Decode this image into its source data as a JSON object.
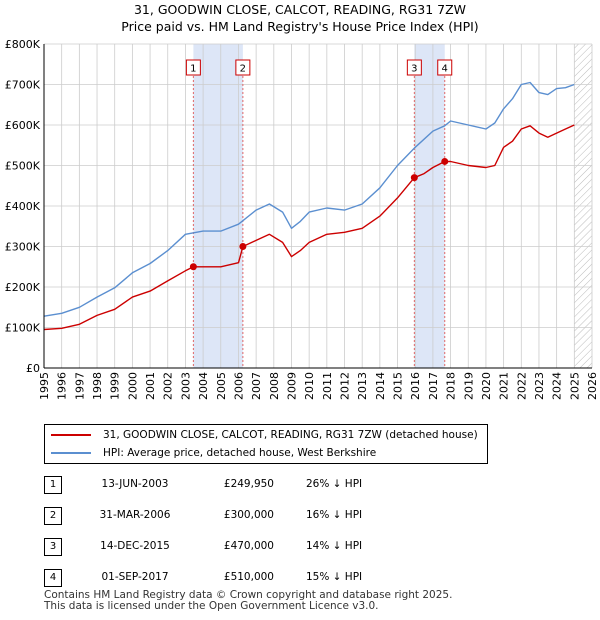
{
  "title_line1": "31, GOODWIN CLOSE, CALCOT, READING, RG31 7ZW",
  "title_line2": "Price paid vs. HM Land Registry's House Price Index (HPI)",
  "colors": {
    "property": "#cc0000",
    "hpi": "#5b8fd0",
    "shade": "#dde6f7",
    "grid": "#cccccc"
  },
  "legend": {
    "property": "31, GOODWIN CLOSE, CALCOT, READING, RG31 7ZW (detached house)",
    "hpi": "HPI: Average price, detached house, West Berkshire"
  },
  "sales": [
    {
      "num": "1",
      "date": "13-JUN-2003",
      "price": "£249,950",
      "delta": "26% ↓ HPI"
    },
    {
      "num": "2",
      "date": "31-MAR-2006",
      "price": "£300,000",
      "delta": "16% ↓ HPI"
    },
    {
      "num": "3",
      "date": "14-DEC-2015",
      "price": "£470,000",
      "delta": "14% ↓ HPI"
    },
    {
      "num": "4",
      "date": "01-SEP-2017",
      "price": "£510,000",
      "delta": "15% ↓ HPI"
    }
  ],
  "footer_line1": "Contains HM Land Registry data © Crown copyright and database right 2025.",
  "footer_line2": "This data is licensed under the Open Government Licence v3.0.",
  "chart_data": {
    "type": "line",
    "title": "31, GOODWIN CLOSE, CALCOT, READING, RG31 7ZW",
    "subtitle": "Price paid vs. HM Land Registry's House Price Index (HPI)",
    "xlabel": "",
    "ylabel": "",
    "xlim": [
      1995,
      2026
    ],
    "ylim": [
      0,
      800000
    ],
    "y_ticks": [
      0,
      100000,
      200000,
      300000,
      400000,
      500000,
      600000,
      700000,
      800000
    ],
    "y_tick_labels": [
      "£0",
      "£100K",
      "£200K",
      "£300K",
      "£400K",
      "£500K",
      "£600K",
      "£700K",
      "£800K"
    ],
    "x_ticks": [
      1995,
      1996,
      1997,
      1998,
      1999,
      2000,
      2001,
      2002,
      2003,
      2004,
      2005,
      2006,
      2007,
      2008,
      2009,
      2010,
      2011,
      2012,
      2013,
      2014,
      2015,
      2016,
      2017,
      2018,
      2019,
      2020,
      2021,
      2022,
      2023,
      2024,
      2025,
      2026
    ],
    "x_tick_labels": [
      "1995",
      "1996",
      "1997",
      "1998",
      "1999",
      "2000",
      "2001",
      "2002",
      "2003",
      "2004",
      "2005",
      "2006",
      "2007",
      "2008",
      "2009",
      "2010",
      "2011",
      "2012",
      "2013",
      "2014",
      "2015",
      "2016",
      "2017",
      "2018",
      "2019",
      "2020",
      "2021",
      "2022",
      "2023",
      "2024",
      "2025",
      "2026"
    ],
    "grid": true,
    "shaded_ranges": [
      [
        2003.45,
        2006.25
      ],
      [
        2015.95,
        2017.67
      ]
    ],
    "projection_start": 2025.0,
    "markers": [
      {
        "label": "1",
        "x": 2003.45
      },
      {
        "label": "2",
        "x": 2006.25
      },
      {
        "label": "3",
        "x": 2015.95
      },
      {
        "label": "4",
        "x": 2017.67
      }
    ],
    "sale_points": [
      {
        "x": 2003.45,
        "y": 249950
      },
      {
        "x": 2006.25,
        "y": 300000
      },
      {
        "x": 2015.95,
        "y": 470000
      },
      {
        "x": 2017.67,
        "y": 510000
      }
    ],
    "series": [
      {
        "name": "31, GOODWIN CLOSE, CALCOT, READING, RG31 7ZW (detached house)",
        "color": "#cc0000",
        "x": [
          1995,
          1996,
          1997,
          1998,
          1999,
          2000,
          2001,
          2002,
          2003,
          2003.45,
          2004,
          2005,
          2006,
          2006.25,
          2007,
          2007.75,
          2008.5,
          2009,
          2009.5,
          2010,
          2011,
          2012,
          2013,
          2014,
          2015,
          2015.95,
          2016.5,
          2017,
          2017.67,
          2018,
          2019,
          2020,
          2020.5,
          2021,
          2021.5,
          2022,
          2022.5,
          2023,
          2023.5,
          2024,
          2024.5,
          2025
        ],
        "y": [
          95000,
          98000,
          108000,
          130000,
          145000,
          175000,
          190000,
          215000,
          240000,
          249950,
          250000,
          250000,
          260000,
          300000,
          315000,
          330000,
          310000,
          275000,
          290000,
          310000,
          330000,
          335000,
          345000,
          375000,
          420000,
          470000,
          480000,
          495000,
          510000,
          510000,
          500000,
          495000,
          500000,
          545000,
          560000,
          590000,
          598000,
          580000,
          570000,
          580000,
          590000,
          600000
        ]
      },
      {
        "name": "HPI: Average price, detached house, West Berkshire",
        "color": "#5b8fd0",
        "x": [
          1995,
          1996,
          1997,
          1998,
          1999,
          2000,
          2001,
          2002,
          2003,
          2004,
          2005,
          2006,
          2007,
          2007.75,
          2008.5,
          2009,
          2009.5,
          2010,
          2011,
          2012,
          2013,
          2014,
          2015,
          2016,
          2017,
          2017.67,
          2018,
          2019,
          2020,
          2020.5,
          2021,
          2021.5,
          2022,
          2022.5,
          2023,
          2023.5,
          2024,
          2024.5,
          2025
        ],
        "y": [
          128000,
          135000,
          150000,
          175000,
          198000,
          235000,
          258000,
          290000,
          330000,
          338000,
          338000,
          355000,
          390000,
          405000,
          385000,
          345000,
          362000,
          385000,
          395000,
          390000,
          405000,
          445000,
          500000,
          545000,
          585000,
          598000,
          610000,
          600000,
          590000,
          605000,
          640000,
          665000,
          700000,
          705000,
          680000,
          675000,
          690000,
          692000,
          700000
        ]
      }
    ]
  }
}
